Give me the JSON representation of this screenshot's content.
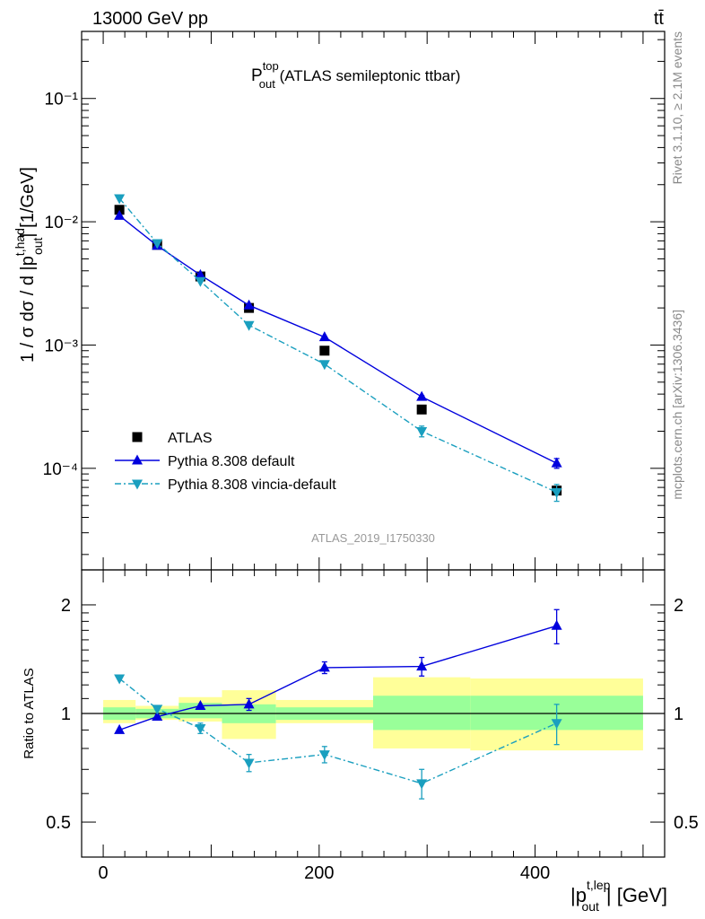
{
  "header": {
    "left": "13000 GeV pp",
    "right": "tt̄"
  },
  "side": {
    "rivet": "Rivet 3.1.10, ≥ 2.1M events",
    "mcplots": "mcplots.cern.ch [arXiv:1306.3436]"
  },
  "chart_data": [
    {
      "type": "scatter",
      "panel": "main",
      "title": {
        "base": "P",
        "sup": "top",
        "sub": "out",
        "rest": " (ATLAS semileptonic ttbar)"
      },
      "analysis": "ATLAS_2019_I1750330",
      "ylabel": "1 / σ dσ / d |p^{t,had}_{out}| [1/GeV]",
      "ylog": true,
      "ylim": [
        1.5e-05,
        0.35
      ],
      "xlim": [
        -20,
        520
      ],
      "yticks": [
        {
          "v": 0.1,
          "label": "10⁻¹"
        },
        {
          "v": 0.01,
          "label": "10⁻²"
        },
        {
          "v": 0.001,
          "label": "10⁻³"
        },
        {
          "v": 0.0001,
          "label": "10⁻⁴"
        }
      ],
      "legend": [
        "ATLAS",
        "Pythia 8.308 default",
        "Pythia 8.308 vincia-default"
      ],
      "legend_position": "bottom-left",
      "series": [
        {
          "name": "ATLAS",
          "color": "#000000",
          "marker": "square",
          "x": [
            15,
            50,
            90,
            135,
            205,
            295,
            420
          ],
          "y": [
            0.0125,
            0.0065,
            0.0036,
            0.002,
            0.0009,
            0.0003,
            6.6e-05
          ]
        },
        {
          "name": "Pythia 8.308 default",
          "color": "#0000dd",
          "marker": "triangle-up",
          "line": "solid",
          "x": [
            15,
            50,
            90,
            135,
            205,
            295,
            420
          ],
          "y": [
            0.0112,
            0.0064,
            0.0037,
            0.0021,
            0.00116,
            0.00038,
            0.00011
          ],
          "err": [
            0,
            0,
            0,
            0,
            0,
            1e-05,
            1e-05
          ]
        },
        {
          "name": "Pythia 8.308 vincia-default",
          "color": "#1a9fbf",
          "marker": "triangle-down",
          "line": "dashdot",
          "x": [
            15,
            50,
            90,
            135,
            205,
            295,
            420
          ],
          "y": [
            0.0155,
            0.0067,
            0.0033,
            0.00145,
            0.0007,
            0.0002,
            6.4e-05
          ],
          "err": [
            0,
            0,
            0,
            0,
            0,
            2e-05,
            1e-05
          ]
        }
      ]
    },
    {
      "type": "scatter",
      "panel": "ratio",
      "ylabel": "Ratio to ATLAS",
      "xlabel": "|p^{t,lep}_{out}| [GeV]",
      "ylog": true,
      "ylim": [
        0.4,
        2.5
      ],
      "xlim": [
        -20,
        520
      ],
      "yticks": [
        {
          "v": 0.5,
          "label": "0.5"
        },
        {
          "v": 1,
          "label": "1"
        },
        {
          "v": 2,
          "label": "2"
        }
      ],
      "xticks": [
        {
          "v": 0,
          "label": "0"
        },
        {
          "v": 200,
          "label": "200"
        },
        {
          "v": 400,
          "label": "400"
        }
      ],
      "bands": {
        "edges": [
          0,
          30,
          70,
          110,
          160,
          250,
          340,
          500
        ],
        "inner": [
          [
            0.96,
            1.04
          ],
          [
            0.97,
            1.03
          ],
          [
            0.97,
            1.07
          ],
          [
            0.94,
            1.06
          ],
          [
            0.96,
            1.04
          ],
          [
            0.9,
            1.12
          ],
          [
            0.9,
            1.12
          ]
        ],
        "outer": [
          [
            0.94,
            1.09
          ],
          [
            0.96,
            1.05
          ],
          [
            0.95,
            1.11
          ],
          [
            0.85,
            1.16
          ],
          [
            0.94,
            1.09
          ],
          [
            0.8,
            1.26
          ],
          [
            0.79,
            1.25
          ]
        ],
        "inner_color": "#99ff99",
        "outer_color": "#ffff99"
      },
      "series": [
        {
          "name": "Pythia 8.308 default",
          "color": "#0000dd",
          "marker": "triangle-up",
          "line": "solid",
          "x": [
            15,
            50,
            90,
            135,
            205,
            295,
            420
          ],
          "y": [
            0.9,
            0.98,
            1.05,
            1.06,
            1.34,
            1.35,
            1.75
          ],
          "err": [
            0,
            0,
            0,
            0.04,
            0.05,
            0.08,
            0.19
          ]
        },
        {
          "name": "Pythia 8.308 vincia-default",
          "color": "#1a9fbf",
          "marker": "triangle-down",
          "line": "dashdot",
          "x": [
            15,
            50,
            90,
            135,
            205,
            295,
            420
          ],
          "y": [
            1.25,
            1.03,
            0.91,
            0.73,
            0.77,
            0.64,
            0.94
          ],
          "err": [
            0,
            0,
            0.03,
            0.04,
            0.04,
            0.06,
            0.12
          ]
        }
      ]
    }
  ]
}
